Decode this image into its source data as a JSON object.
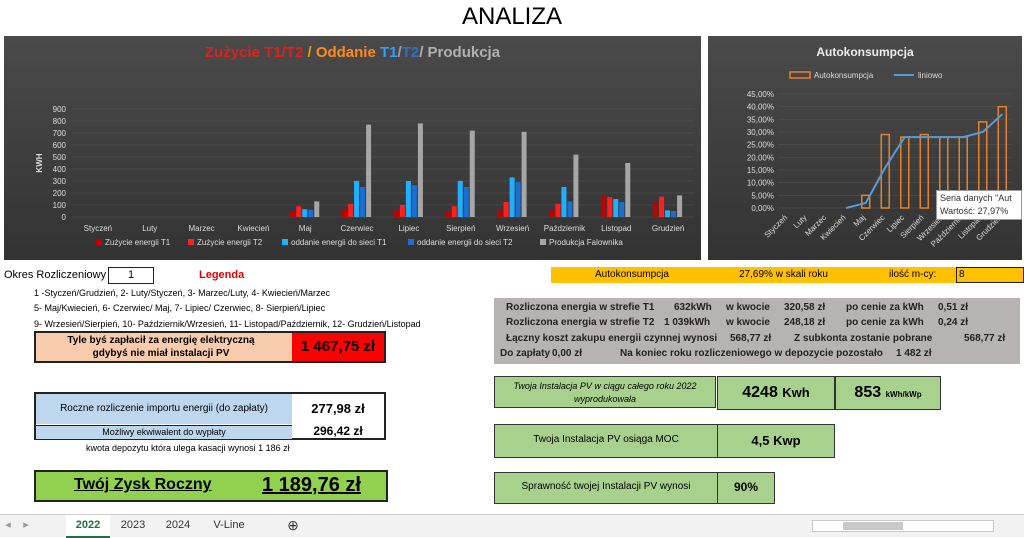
{
  "title": "ANALIZA",
  "main_chart": {
    "title_parts": [
      {
        "text": "Zużycie T1/T2",
        "color": "#e02020"
      },
      {
        "text": " / ",
        "color": "#e0a000"
      },
      {
        "text": "Oddanie ",
        "color": "#ff8c1a"
      },
      {
        "text": "T1",
        "color": "#30a0ff"
      },
      {
        "text": "/",
        "color": "#a0a0a0"
      },
      {
        "text": "T2",
        "color": "#3070c0"
      },
      {
        "text": "/ Produkcja",
        "color": "#b0b0b0"
      }
    ]
  },
  "chart_data": [
    {
      "type": "bar",
      "ylabel": "KWH",
      "ylim": [
        0,
        900
      ],
      "yticks": [
        "0",
        "100",
        "200",
        "300",
        "400",
        "500",
        "600",
        "700",
        "800",
        "900"
      ],
      "categories": [
        "Styczeń",
        "Luty",
        "Marzec",
        "Kwiecień",
        "Maj",
        "Czerwiec",
        "Lipiec",
        "Sierpień",
        "Wrzesień",
        "Październik",
        "Listopad",
        "Grudzień"
      ],
      "series": [
        {
          "name": "Zużycie energii T1",
          "color": "#c00000",
          "values": [
            0,
            0,
            0,
            0,
            45,
            60,
            55,
            50,
            55,
            60,
            175,
            130
          ]
        },
        {
          "name": "Zużycie energii T2",
          "color": "#ff2020",
          "values": [
            0,
            0,
            0,
            0,
            90,
            110,
            100,
            90,
            125,
            110,
            165,
            170
          ]
        },
        {
          "name": "oddanie energii do sieci T1",
          "color": "#1fb0ff",
          "values": [
            0,
            0,
            0,
            0,
            65,
            300,
            300,
            300,
            330,
            250,
            150,
            55
          ]
        },
        {
          "name": "oddanie energii do sieci T2",
          "color": "#1a6fd0",
          "values": [
            0,
            0,
            0,
            0,
            60,
            250,
            265,
            250,
            290,
            130,
            125,
            50
          ]
        },
        {
          "name": "Produkcja Falownika",
          "color": "#a6a6a6",
          "values": [
            0,
            0,
            0,
            0,
            130,
            770,
            780,
            720,
            710,
            520,
            450,
            180
          ]
        }
      ],
      "legend": "bottom"
    },
    {
      "type": "bar",
      "title": "Autokonsumpcja",
      "ylim": [
        0,
        45
      ],
      "yticks": [
        "0,00%",
        "5,00%",
        "10,00%",
        "15,00%",
        "20,00%",
        "25,00%",
        "30,00%",
        "35,00%",
        "40,00%",
        "45,00%"
      ],
      "categories": [
        "Styczeń",
        "Luty",
        "Marzec",
        "Kwiecień",
        "Maj",
        "Czerwiec",
        "Lipiec",
        "Sierpień",
        "Wrzesień",
        "Październik",
        "Listopad",
        "Grudzień"
      ],
      "series": [
        {
          "name": "Autokonsumpcja",
          "color": "#e8822a",
          "values": [
            0,
            0,
            0,
            0,
            5,
            29,
            28,
            29,
            28,
            28,
            34,
            40
          ]
        },
        {
          "name": "liniowo",
          "color": "#5b9bd5",
          "values": [
            null,
            null,
            null,
            0,
            2,
            16,
            28,
            28,
            28,
            28,
            30,
            37
          ]
        }
      ],
      "legend": "top",
      "tooltip": {
        "line1": "Seria danych \"Aut",
        "line2": "Wartość: 27,97%"
      }
    }
  ],
  "okres": {
    "label": "Okres Rozliczeniowy",
    "value": "1",
    "legenda": "Legenda"
  },
  "legend_lines": [
    "1 -Styczeń/Grudzień, 2- Luty/Styczeń, 3- Marzec/Luty, 4- Kwiecień/Marzec",
    "5- Maj/Kwiecień, 6- Czerwiec/ Maj, 7- Lipiec/ Czerwiec, 8- Sierpień/Lipiec",
    "9- Wrzesień/Sierpień, 10- Październik/Wrzesień, 11- Listopad/Październik, 12- Grudzień/Listopad"
  ],
  "no_pv": {
    "line1": "Tyle byś zapłacił za energię elektryczną",
    "line2": "gdybyś nie miał instalacji PV",
    "value": "1 467,75 zł"
  },
  "annual": {
    "label": "Roczne rozliczenie importu energii (do zapłaty)",
    "value": "277,98 zł",
    "eq_label": "Możliwy ekwiwalent do wypłaty",
    "eq_value": "296,42 zł",
    "deposit": "kwota depozytu która ulega kasacji wynosi  1 186 zł"
  },
  "zysk": {
    "label": "Twój Zysk Roczny",
    "value": "1 189,76 zł"
  },
  "auto_bar": {
    "label": "Autokonsumpcja",
    "value": "27,69% w skali roku",
    "months_label": "ilość m-cy:",
    "months": "8"
  },
  "gray_table": {
    "r1": {
      "a": "Rozliczona energia w strefie T1",
      "b": "632kWh",
      "c": "w kwocie",
      "d": "320,58 zł",
      "e": "po cenie za kWh",
      "f": "0,51 zł"
    },
    "r2": {
      "a": "Rozliczona energia w strefie T2",
      "b": "1 039kWh",
      "c": "w kwocie",
      "d": "248,18 zł",
      "e": "po cenie za kWh",
      "f": "0,24 zł"
    },
    "r3": {
      "a": "Łączny koszt zakupu energii czynnej wynosi",
      "b": "568,77 zł",
      "c": "Z subkonta zostanie pobrane",
      "d": "568,77 zł"
    },
    "r4": {
      "a": "Do zapłaty",
      "b": "0,00 zł",
      "c": "Na koniec roku rozliczeniowego w depozycie pozostało",
      "d": "1 482 zł"
    }
  },
  "pv_prod": {
    "label1": "Twoja Instalacja PV w ciągu całego roku 2022",
    "label2": "wyprodukowała",
    "kwh": "4248",
    "kwh_unit": "Kwh",
    "per": "853",
    "per_unit": "kWh/kWp"
  },
  "pv_power": {
    "label": "Twoja Instalacja PV osiąga MOC",
    "value": "4,5",
    "unit": "Kwp"
  },
  "pv_eff": {
    "label": "Sprawność twojej Instalacji PV wynosi",
    "value": "90%"
  },
  "tabs": [
    {
      "label": "2022",
      "active": true
    },
    {
      "label": "2023",
      "active": false
    },
    {
      "label": "2024",
      "active": false
    },
    {
      "label": "V-Line",
      "active": false
    }
  ]
}
